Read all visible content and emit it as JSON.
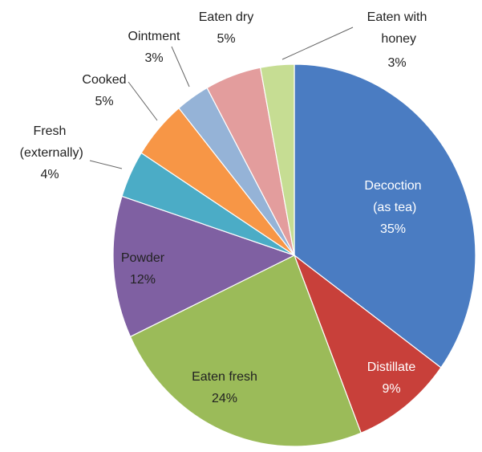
{
  "chart_data": {
    "type": "pie",
    "categories": [
      "Decoction (as tea)",
      "Distillate",
      "Eaten fresh",
      "Powder",
      "Fresh (externally)",
      "Cooked",
      "Ointment",
      "Eaten dry",
      "Eaten with honey"
    ],
    "values": [
      35,
      9,
      24,
      12,
      4,
      5,
      3,
      5,
      3
    ],
    "value_labels": [
      "35%",
      "9%",
      "24%",
      "12%",
      "4%",
      "5%",
      "3%",
      "5%",
      "3%"
    ],
    "colors": [
      "#4a7cc2",
      "#c8403a",
      "#9bbb59",
      "#7f60a2",
      "#4bacc6",
      "#f79646",
      "#95b3d7",
      "#e39d9d",
      "#c6dd93"
    ]
  }
}
